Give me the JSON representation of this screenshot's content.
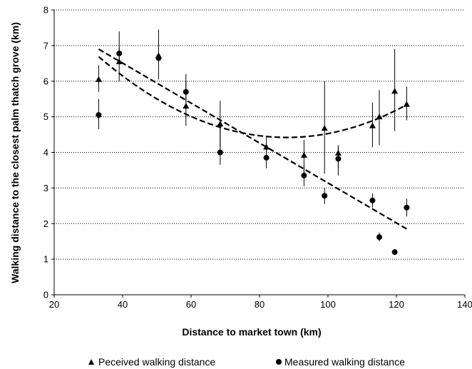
{
  "chart_data": {
    "type": "scatter",
    "title": "",
    "xlabel": "Distance to market town (km)",
    "ylabel": "Walking distance to the closest palm thatch grove (km)",
    "xlim": [
      20,
      140
    ],
    "ylim": [
      0,
      8
    ],
    "xticks": [
      "20",
      "40",
      "60",
      "80",
      "100",
      "120",
      "140"
    ],
    "yticks": [
      "0",
      "1",
      "2",
      "3",
      "4",
      "5",
      "6",
      "7",
      "8"
    ],
    "grid": "horizontal dotted",
    "legend_position": "bottom",
    "series": [
      {
        "name": "Peceived walking distance",
        "marker": "triangle",
        "points": [
          {
            "x": 33,
            "y": 6.05,
            "err_low": 5.7,
            "err_high": 6.45
          },
          {
            "x": 39,
            "y": 6.55,
            "err_low": 6.0,
            "err_high": 7.4
          },
          {
            "x": 50.5,
            "y": 6.72,
            "err_low": 6.05,
            "err_high": 7.45
          },
          {
            "x": 58.5,
            "y": 5.3,
            "err_low": 4.75,
            "err_high": 6.2
          },
          {
            "x": 68.5,
            "y": 4.8,
            "err_low": 4.15,
            "err_high": 5.45
          },
          {
            "x": 82,
            "y": 4.15,
            "err_low": 3.85,
            "err_high": 4.45
          },
          {
            "x": 93,
            "y": 3.92,
            "err_low": 3.4,
            "err_high": 4.35
          },
          {
            "x": 99,
            "y": 4.68,
            "err_low": 3.4,
            "err_high": 6.0
          },
          {
            "x": 103,
            "y": 3.98,
            "err_low": 3.55,
            "err_high": 4.2
          },
          {
            "x": 113,
            "y": 4.75,
            "err_low": 4.15,
            "err_high": 5.4
          },
          {
            "x": 115,
            "y": 5.0,
            "err_low": 4.2,
            "err_high": 5.75
          },
          {
            "x": 119.5,
            "y": 5.72,
            "err_low": 4.6,
            "err_high": 6.9
          },
          {
            "x": 123,
            "y": 5.35,
            "err_low": 4.9,
            "err_high": 5.85
          }
        ]
      },
      {
        "name": "Measured walking distance",
        "marker": "circle",
        "points": [
          {
            "x": 33,
            "y": 5.05,
            "err_low": 4.65,
            "err_high": 5.5
          },
          {
            "x": 39,
            "y": 6.78,
            "err_low": 6.55,
            "err_high": 6.95
          },
          {
            "x": 50.5,
            "y": 6.65,
            "err_low": 6.55,
            "err_high": 6.75
          },
          {
            "x": 58.5,
            "y": 5.7,
            "err_low": 5.4,
            "err_high": 6.0
          },
          {
            "x": 68.5,
            "y": 4.0,
            "err_low": 3.65,
            "err_high": 4.7
          },
          {
            "x": 82,
            "y": 3.85,
            "err_low": 3.55,
            "err_high": 4.15
          },
          {
            "x": 93,
            "y": 3.35,
            "err_low": 3.05,
            "err_high": 3.65
          },
          {
            "x": 99,
            "y": 2.78,
            "err_low": 2.55,
            "err_high": 3.0
          },
          {
            "x": 103,
            "y": 3.82,
            "err_low": 3.35,
            "err_high": 4.2
          },
          {
            "x": 113,
            "y": 2.65,
            "err_low": 2.45,
            "err_high": 2.85
          },
          {
            "x": 115,
            "y": 1.62,
            "err_low": 1.5,
            "err_high": 1.75
          },
          {
            "x": 119.5,
            "y": 1.2,
            "err_low": 1.12,
            "err_high": 1.28
          },
          {
            "x": 123,
            "y": 2.45,
            "err_low": 2.2,
            "err_high": 2.7
          }
        ]
      }
    ],
    "trendlines": [
      {
        "kind": "polynomial",
        "style": "dashed",
        "x_range": [
          33,
          123
        ],
        "vertex_x": 88,
        "vertex_y": 4.42,
        "curvature": 0.00075
      },
      {
        "kind": "linear",
        "style": "dashed",
        "x_start": 33,
        "y_start": 6.9,
        "x_end": 123,
        "y_end": 1.85
      }
    ]
  }
}
